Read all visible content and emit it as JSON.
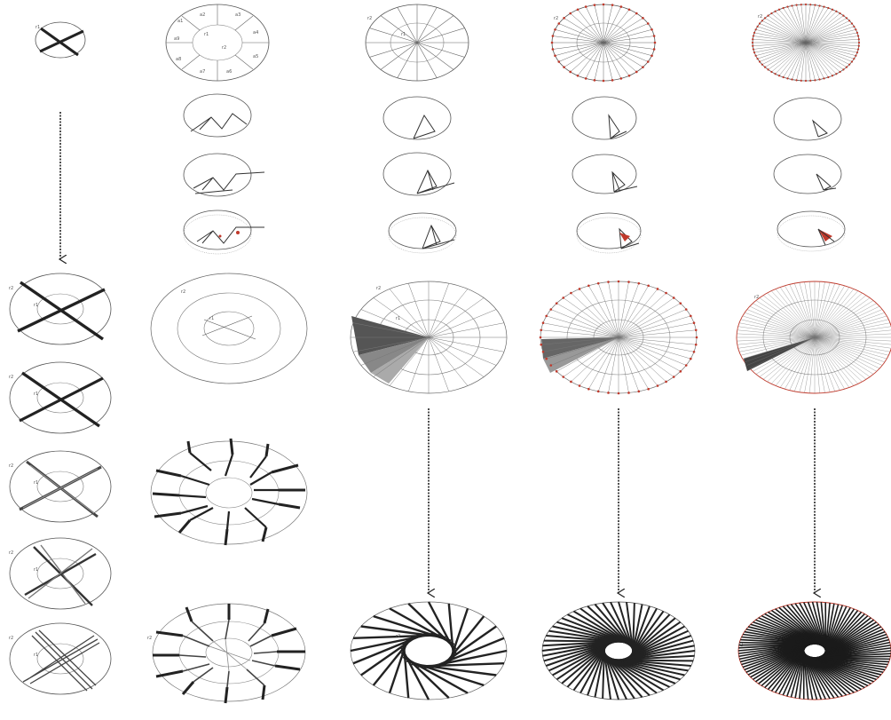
{
  "labels": {
    "r1": "r1",
    "r2": "r2",
    "a1": "a1",
    "a2": "a2",
    "a3": "a3",
    "a4": "a4",
    "a5": "a5",
    "a6": "a6",
    "a7": "a7",
    "a8": "a8",
    "a9": "a9",
    "a10": "a10",
    "a11": "a11",
    "a12": "a12"
  },
  "colors": {
    "ink": "#333333",
    "dark_member": "#2b2b2b",
    "accent_node": "#c0392b",
    "sector_dark": "#555555",
    "sector_mid": "#888888",
    "sector_light": "#bbbbbb"
  },
  "icons": [
    "down-arrow-icon"
  ]
}
